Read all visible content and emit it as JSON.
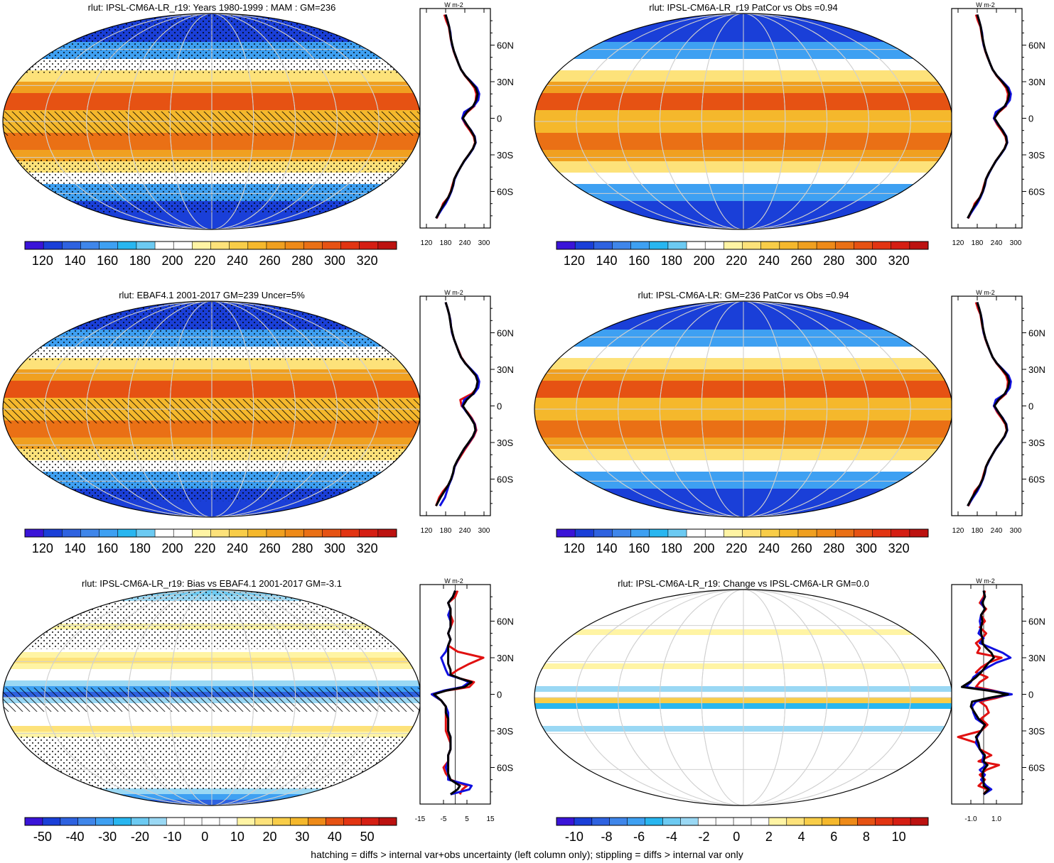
{
  "panels": [
    {
      "title": "rlut: IPSL-CM6A-LR_r19: Years 1980-1999 : MAM : GM=236",
      "kind": "clim",
      "cb_labels": [
        "120",
        "140",
        "160",
        "180",
        "200",
        "220",
        "240",
        "260",
        "280",
        "300",
        "320"
      ],
      "zonal_xticks": [
        "120",
        "180",
        "240",
        "300"
      ],
      "zonal_xrange": [
        100,
        320
      ],
      "hatched": true
    },
    {
      "title": "rlut: IPSL-CM6A-LR_r19 PatCor vs Obs =0.94",
      "kind": "clim",
      "cb_labels": [
        "120",
        "140",
        "160",
        "180",
        "200",
        "220",
        "240",
        "260",
        "280",
        "300",
        "320"
      ],
      "zonal_xticks": [
        "120",
        "180",
        "240",
        "300"
      ],
      "zonal_xrange": [
        100,
        320
      ],
      "hatched": false
    },
    {
      "title": "rlut: EBAF4.1 2001-2017 GM=239 Uncer=5%",
      "kind": "clim",
      "cb_labels": [
        "120",
        "140",
        "160",
        "180",
        "200",
        "220",
        "240",
        "260",
        "280",
        "300",
        "320"
      ],
      "zonal_xticks": [
        "120",
        "180",
        "240",
        "300"
      ],
      "zonal_xrange": [
        100,
        320
      ],
      "hatched": true
    },
    {
      "title": "rlut: IPSL-CM6A-LR: GM=236 PatCor vs Obs =0.94",
      "kind": "clim",
      "cb_labels": [
        "120",
        "140",
        "160",
        "180",
        "200",
        "220",
        "240",
        "260",
        "280",
        "300",
        "320"
      ],
      "zonal_xticks": [
        "120",
        "180",
        "240",
        "300"
      ],
      "zonal_xrange": [
        100,
        320
      ],
      "hatched": false
    },
    {
      "title": "rlut: IPSL-CM6A-LR_r19: Bias vs EBAF4.1 2001-2017 GM=-3.1",
      "kind": "bias",
      "cb_labels": [
        "-50",
        "-40",
        "-30",
        "-20",
        "-10",
        "0",
        "10",
        "20",
        "30",
        "40",
        "50"
      ],
      "zonal_xticks": [
        "-15",
        "-5",
        "5",
        "15"
      ],
      "zonal_xrange": [
        -15,
        15
      ],
      "hatched": true
    },
    {
      "title": "rlut: IPSL-CM6A-LR_r19: Change vs IPSL-CM6A-LR GM=0.0",
      "kind": "change",
      "cb_labels": [
        "-10",
        "-8",
        "-6",
        "-4",
        "-2",
        "0",
        "2",
        "4",
        "6",
        "8",
        "10"
      ],
      "zonal_xticks": [
        "-1.0",
        "1.0"
      ],
      "zonal_xrange": [
        -2.5,
        3.0
      ],
      "hatched": false
    }
  ],
  "lat_labels": [
    "60N",
    "30N",
    "0",
    "30S",
    "60S"
  ],
  "zonal_unit": "W m-2",
  "footer": "hatching = diffs > internal var+obs uncertainty (left column only); stippling = diffs > internal var only",
  "colors": {
    "clim": [
      "#3a14d8",
      "#1a3fd8",
      "#2e62e0",
      "#3f86ea",
      "#3ea0f2",
      "#28b6f0",
      "#6ccaf2",
      "#ffffff",
      "#ffffff",
      "#fff4a4",
      "#fde27a",
      "#f8cd48",
      "#f5b82c",
      "#f0a020",
      "#ee8a18",
      "#ea7015",
      "#e65213",
      "#e23412",
      "#d51e13",
      "#bc1210"
    ],
    "series": {
      "model": "#e01010",
      "obs": "#1010e0",
      "mmm": "#000000"
    }
  },
  "chart_data": [
    {
      "type": "line",
      "title": "rlut: IPSL-CM6A-LR_r19: Years 1980-1999 : MAM : GM=236",
      "ylabel": "latitude",
      "xlabel": "W m-2",
      "xlim": [
        100,
        320
      ],
      "lat": [
        -82,
        -75,
        -70,
        -65,
        -60,
        -55,
        -50,
        -45,
        -40,
        -35,
        -30,
        -25,
        -20,
        -15,
        -10,
        -5,
        0,
        5,
        10,
        15,
        20,
        25,
        30,
        35,
        40,
        45,
        50,
        55,
        60,
        65,
        70,
        75,
        80,
        85
      ],
      "series": [
        {
          "name": "model",
          "values": [
            152,
            165,
            172,
            188,
            196,
            201,
            207,
            216,
            227,
            238,
            252,
            265,
            272,
            268,
            256,
            242,
            232,
            248,
            270,
            274,
            276,
            270,
            256,
            240,
            228,
            220,
            212,
            205,
            200,
            196,
            193,
            190,
            182,
            176
          ]
        },
        {
          "name": "obs",
          "values": [
            150,
            167,
            180,
            190,
            198,
            204,
            208,
            217,
            227,
            239,
            253,
            266,
            274,
            271,
            260,
            245,
            232,
            238,
            268,
            282,
            285,
            278,
            260,
            241,
            228,
            220,
            213,
            206,
            200,
            197,
            195,
            191,
            186,
            180
          ]
        },
        {
          "name": "mmm",
          "values": [
            150,
            164,
            176,
            188,
            197,
            203,
            207,
            216,
            227,
            238,
            252,
            265,
            273,
            270,
            259,
            246,
            234,
            246,
            266,
            276,
            280,
            274,
            258,
            241,
            228,
            220,
            213,
            206,
            201,
            197,
            194,
            191,
            186,
            180
          ]
        }
      ]
    },
    {
      "type": "line",
      "title": "rlut: IPSL-CM6A-LR_r19 PatCor vs Obs =0.94",
      "ylabel": "latitude",
      "xlabel": "W m-2",
      "xlim": [
        100,
        320
      ],
      "lat": [
        -82,
        -75,
        -70,
        -65,
        -60,
        -55,
        -50,
        -45,
        -40,
        -35,
        -30,
        -25,
        -20,
        -15,
        -10,
        -5,
        0,
        5,
        10,
        15,
        20,
        25,
        30,
        35,
        40,
        45,
        50,
        55,
        60,
        65,
        70,
        75,
        80,
        85
      ],
      "series": [
        {
          "name": "model",
          "values": [
            152,
            165,
            172,
            188,
            196,
            201,
            207,
            216,
            227,
            238,
            252,
            265,
            272,
            268,
            256,
            242,
            232,
            248,
            270,
            274,
            276,
            270,
            256,
            240,
            228,
            220,
            212,
            205,
            200,
            196,
            193,
            190,
            182,
            176
          ]
        },
        {
          "name": "obs",
          "values": [
            150,
            167,
            180,
            190,
            198,
            204,
            208,
            217,
            227,
            239,
            253,
            266,
            274,
            271,
            260,
            245,
            232,
            238,
            268,
            282,
            285,
            278,
            260,
            241,
            228,
            220,
            213,
            206,
            200,
            197,
            195,
            191,
            186,
            180
          ]
        },
        {
          "name": "mmm",
          "values": [
            150,
            164,
            176,
            188,
            197,
            203,
            207,
            216,
            227,
            238,
            252,
            265,
            273,
            270,
            259,
            246,
            234,
            246,
            266,
            276,
            280,
            274,
            258,
            241,
            228,
            220,
            213,
            206,
            201,
            197,
            194,
            191,
            186,
            180
          ]
        }
      ]
    },
    {
      "type": "line",
      "title": "rlut: EBAF4.1 2001-2017 GM=239 Uncer=5%",
      "ylabel": "latitude",
      "xlabel": "W m-2",
      "xlim": [
        100,
        320
      ],
      "lat": [
        -82,
        -75,
        -70,
        -65,
        -60,
        -55,
        -50,
        -45,
        -40,
        -35,
        -30,
        -25,
        -20,
        -15,
        -10,
        -5,
        0,
        5,
        10,
        15,
        20,
        25,
        30,
        35,
        40,
        45,
        50,
        55,
        60,
        65,
        70,
        75,
        80,
        85
      ],
      "series": [
        {
          "name": "model",
          "values": [
            150,
            160,
            172,
            188,
            198,
            204,
            208,
            218,
            230,
            242,
            255,
            268,
            276,
            272,
            262,
            248,
            230,
            226,
            262,
            280,
            282,
            274,
            258,
            242,
            229,
            221,
            213,
            206,
            200,
            197,
            195,
            191,
            186,
            180
          ]
        },
        {
          "name": "obs",
          "values": [
            162,
            178,
            184,
            190,
            198,
            204,
            208,
            217,
            227,
            239,
            253,
            266,
            274,
            271,
            260,
            245,
            232,
            238,
            268,
            282,
            285,
            278,
            260,
            241,
            228,
            220,
            213,
            206,
            200,
            197,
            195,
            191,
            186,
            180
          ]
        },
        {
          "name": "mmm",
          "values": [
            150,
            164,
            176,
            188,
            197,
            203,
            207,
            216,
            227,
            238,
            252,
            265,
            273,
            270,
            259,
            246,
            234,
            246,
            266,
            276,
            280,
            274,
            258,
            241,
            228,
            220,
            213,
            206,
            201,
            197,
            194,
            191,
            186,
            180
          ]
        }
      ]
    },
    {
      "type": "line",
      "title": "rlut: IPSL-CM6A-LR: GM=236 PatCor vs Obs =0.94",
      "ylabel": "latitude",
      "xlabel": "W m-2",
      "xlim": [
        100,
        320
      ],
      "lat": [
        -82,
        -75,
        -70,
        -65,
        -60,
        -55,
        -50,
        -45,
        -40,
        -35,
        -30,
        -25,
        -20,
        -15,
        -10,
        -5,
        0,
        5,
        10,
        15,
        20,
        25,
        30,
        35,
        40,
        45,
        50,
        55,
        60,
        65,
        70,
        75,
        80,
        85
      ],
      "series": [
        {
          "name": "model",
          "values": [
            152,
            165,
            172,
            188,
            196,
            201,
            207,
            216,
            227,
            238,
            252,
            265,
            272,
            268,
            256,
            242,
            232,
            248,
            270,
            274,
            276,
            270,
            256,
            240,
            228,
            220,
            212,
            205,
            200,
            196,
            193,
            190,
            182,
            176
          ]
        },
        {
          "name": "obs",
          "values": [
            150,
            167,
            180,
            190,
            198,
            204,
            208,
            217,
            227,
            239,
            253,
            266,
            274,
            271,
            260,
            245,
            232,
            238,
            268,
            282,
            285,
            278,
            260,
            241,
            228,
            220,
            213,
            206,
            200,
            197,
            195,
            191,
            186,
            180
          ]
        },
        {
          "name": "mmm",
          "values": [
            150,
            164,
            176,
            188,
            197,
            203,
            207,
            216,
            227,
            238,
            252,
            265,
            273,
            270,
            259,
            246,
            234,
            246,
            266,
            276,
            280,
            274,
            258,
            241,
            228,
            220,
            213,
            206,
            201,
            197,
            194,
            191,
            186,
            180
          ]
        }
      ]
    },
    {
      "type": "line",
      "title": "rlut: IPSL-CM6A-LR_r19: Bias vs EBAF4.1 2001-2017 GM=-3.1",
      "ylabel": "latitude",
      "xlabel": "W m-2",
      "xlim": [
        -15,
        15
      ],
      "lat": [
        -82,
        -78,
        -75,
        -70,
        -65,
        -60,
        -55,
        -50,
        -45,
        -40,
        -35,
        -30,
        -25,
        -20,
        -15,
        -10,
        -5,
        0,
        3,
        6,
        10,
        13,
        16,
        20,
        25,
        30,
        35,
        40,
        45,
        50,
        55,
        60,
        65,
        70,
        75,
        80,
        85
      ],
      "series": [
        {
          "name": "model",
          "values": [
            2,
            3,
            5,
            -2,
            -4,
            -5,
            -3,
            -3,
            -2,
            -2,
            -3,
            -4,
            -4,
            -4,
            -4,
            -4,
            -6,
            -10,
            -4,
            6,
            8,
            2,
            -2,
            1,
            6,
            12,
            1,
            -3,
            -2,
            -3,
            -2,
            -1,
            -2,
            -2,
            -3,
            0,
            1
          ]
        },
        {
          "name": "obs",
          "values": [
            -2,
            6,
            7,
            -3,
            -3,
            -4,
            -3,
            -3,
            -2,
            -2,
            -2,
            -3,
            -3,
            -3,
            -3,
            -4,
            -6,
            -10,
            -5,
            3,
            6,
            2,
            -3,
            -4,
            -5,
            -6,
            -4,
            -3,
            -2,
            -3,
            -2,
            -2,
            -3,
            -2,
            -3,
            -1,
            0
          ]
        },
        {
          "name": "mmm",
          "values": [
            -2,
            1,
            2,
            -2,
            -3,
            -3,
            -3,
            -3,
            -2,
            -2,
            -2,
            -3,
            -3,
            -3,
            -4,
            -4,
            -6,
            -9,
            -4,
            4,
            7,
            2,
            -2,
            -2,
            -3,
            -3,
            -3,
            -3,
            -2,
            -3,
            -2,
            -2,
            -2,
            -2,
            -3,
            -1,
            0
          ]
        }
      ]
    },
    {
      "type": "line",
      "title": "rlut: IPSL-CM6A-LR_r19: Change vs IPSL-CM6A-LR GM=0.0",
      "ylabel": "latitude",
      "xlabel": "W m-2",
      "xlim": [
        -2.5,
        3.0
      ],
      "lat": [
        -82,
        -78,
        -75,
        -70,
        -66,
        -62,
        -58,
        -55,
        -50,
        -45,
        -40,
        -35,
        -30,
        -25,
        -20,
        -15,
        -10,
        -6,
        -3,
        0,
        3,
        6,
        10,
        14,
        18,
        22,
        26,
        30,
        34,
        38,
        42,
        46,
        50,
        55,
        60,
        65,
        70,
        75,
        80,
        85
      ],
      "series": [
        {
          "name": "model",
          "values": [
            0.0,
            0.3,
            -0.4,
            0.1,
            -0.3,
            0.2,
            1.2,
            -0.4,
            0.6,
            -0.3,
            -0.5,
            -2.0,
            -0.2,
            0.3,
            -0.2,
            0.4,
            0.2,
            -0.3,
            1.0,
            2.0,
            0.8,
            -0.6,
            -0.3,
            0.3,
            -0.6,
            -0.2,
            0.4,
            1.4,
            -0.5,
            -0.3,
            -0.6,
            -0.1,
            0.2,
            -0.3,
            0.1,
            -0.2,
            0.2,
            -0.3,
            0.0,
            0.1
          ]
        },
        {
          "name": "obs",
          "values": [
            0.0,
            0.6,
            0.2,
            -0.2,
            0.1,
            -0.3,
            0.2,
            -0.1,
            0.0,
            -0.3,
            -0.6,
            -0.5,
            -0.2,
            0.1,
            -0.6,
            -0.8,
            -0.9,
            -0.6,
            0.5,
            2.2,
            0.6,
            -1.4,
            -1.0,
            -0.8,
            -0.3,
            0.3,
            1.0,
            2.1,
            1.5,
            0.6,
            -0.3,
            0.0,
            -0.4,
            -0.2,
            -0.3,
            -0.2,
            0.1,
            -0.2,
            0.1,
            0.0
          ]
        },
        {
          "name": "mmm",
          "values": [
            0.0,
            0.4,
            0.0,
            0.0,
            -0.1,
            0.0,
            0.3,
            0.0,
            0.1,
            -0.3,
            -0.4,
            -0.6,
            -0.2,
            0.1,
            -0.4,
            -0.7,
            -1.0,
            -0.9,
            0.4,
            1.9,
            0.4,
            -1.7,
            -1.1,
            -0.6,
            -0.2,
            0.1,
            0.4,
            0.8,
            0.6,
            0.2,
            -0.1,
            -0.1,
            -0.2,
            -0.2,
            -0.1,
            -0.2,
            0.1,
            -0.1,
            0.1,
            0.0
          ]
        }
      ]
    }
  ]
}
